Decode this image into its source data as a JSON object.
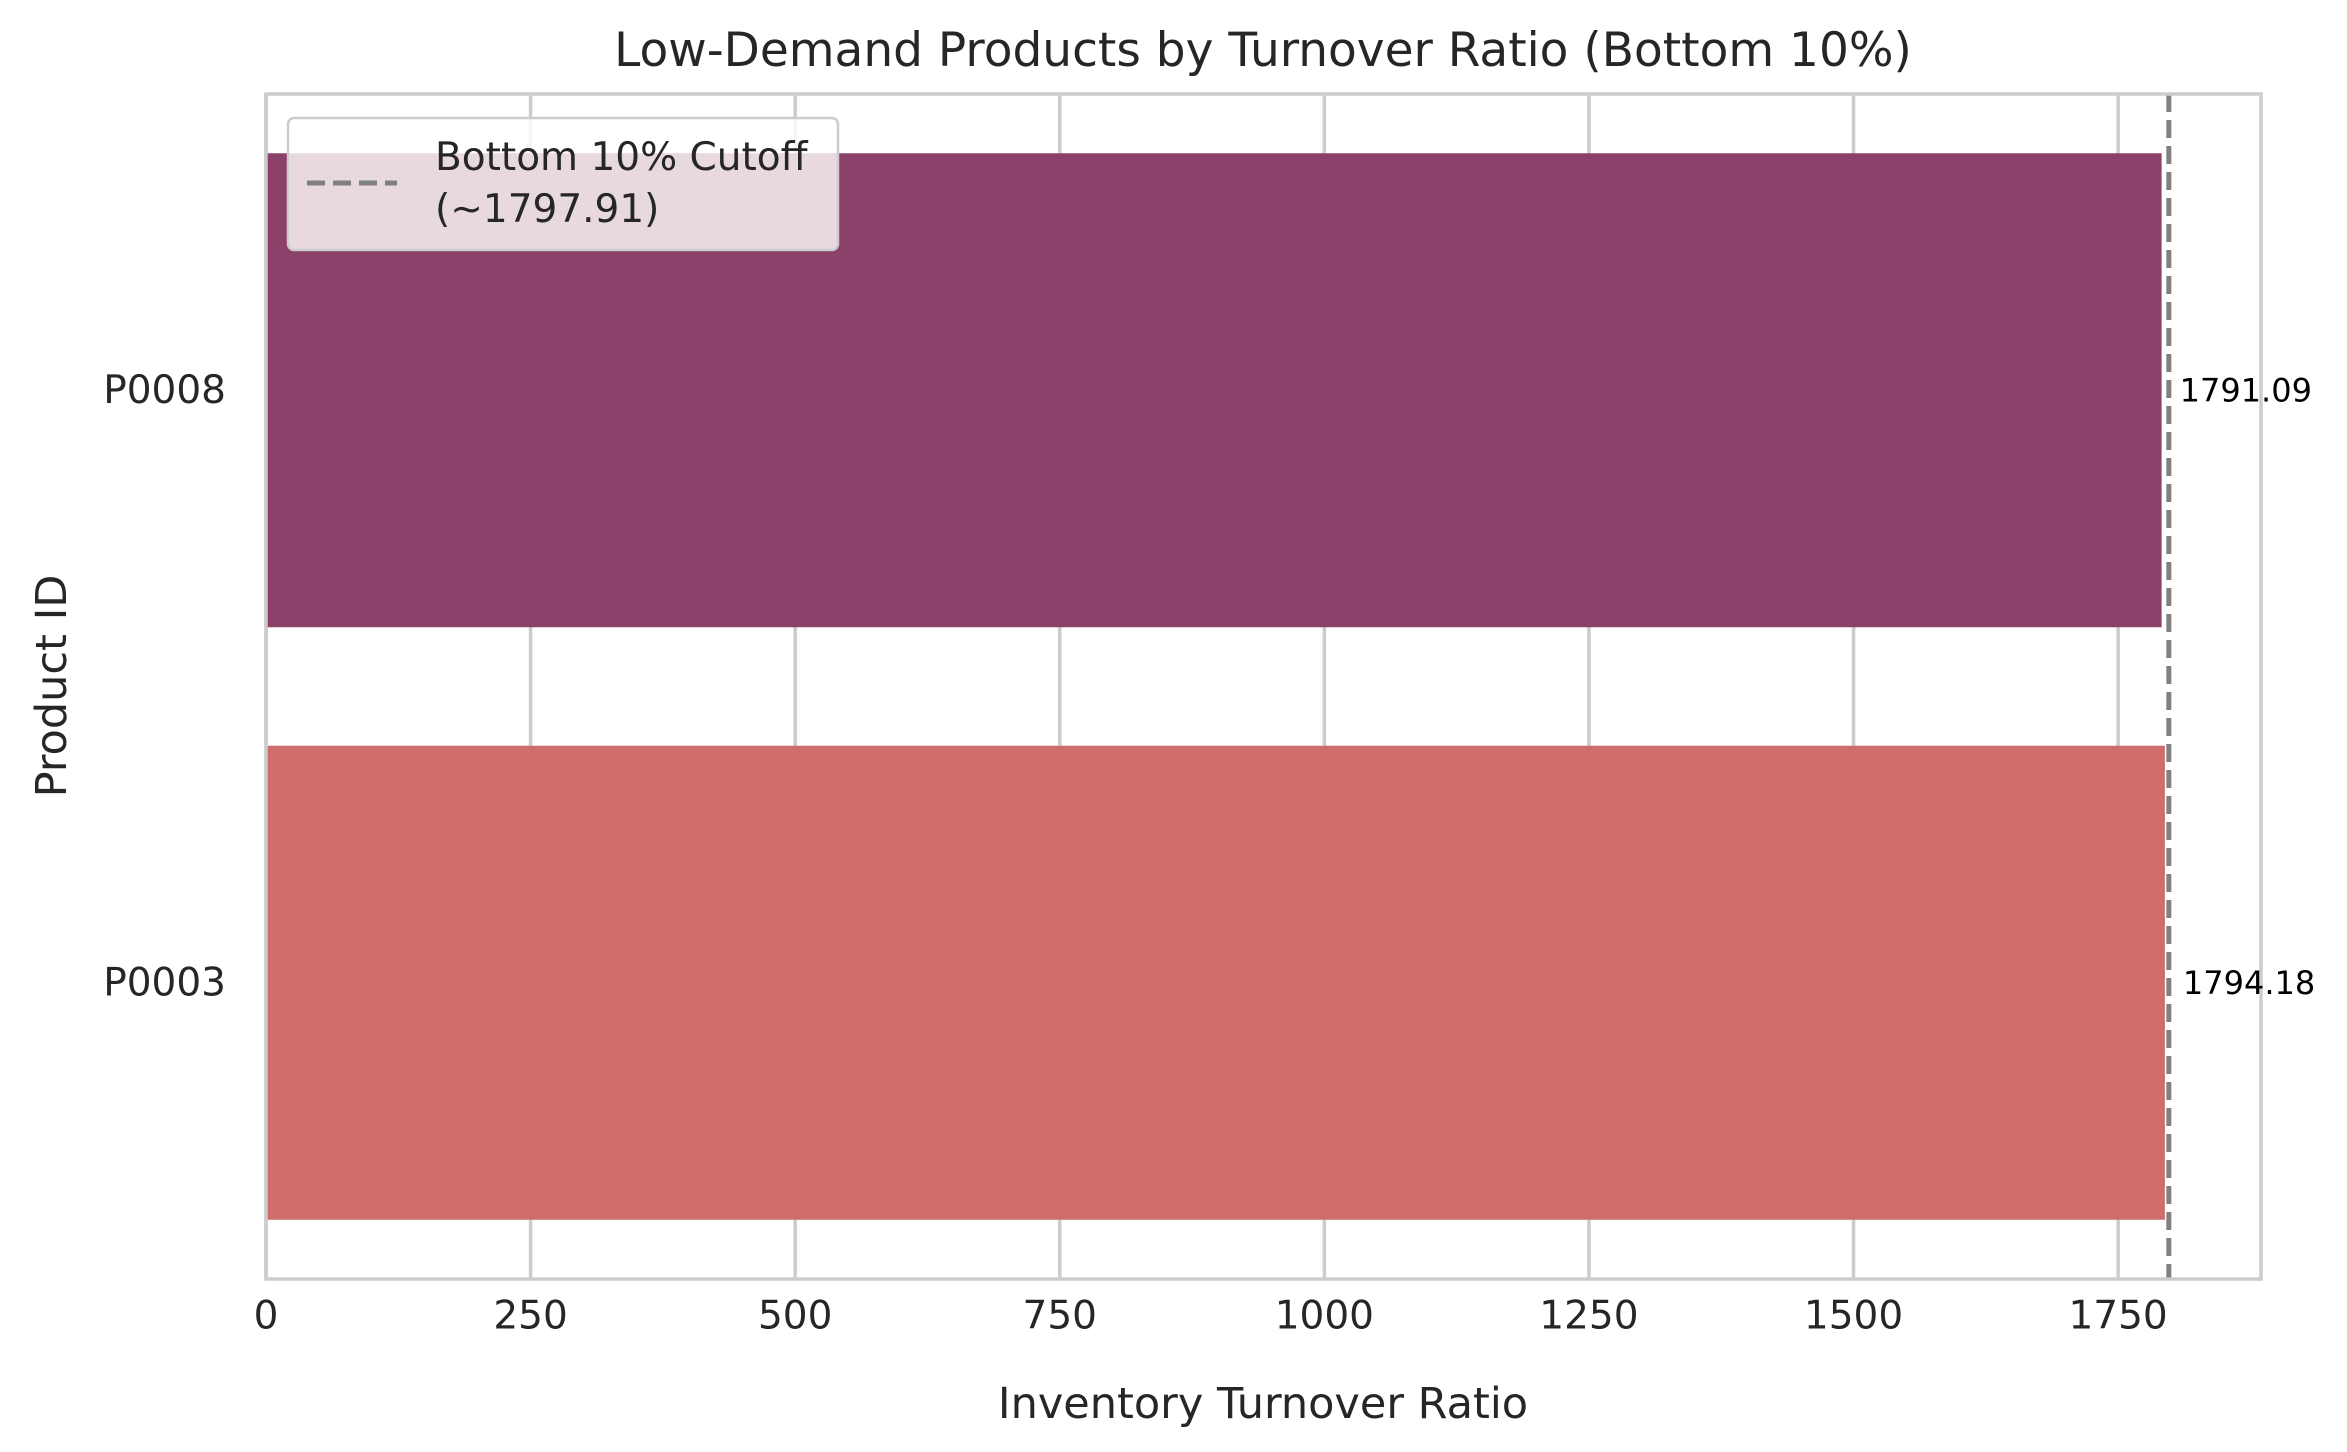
{
  "chart_data": {
    "type": "bar",
    "orientation": "horizontal",
    "title": "Low-Demand Products by Turnover Ratio (Bottom 10%)",
    "xlabel": "Inventory Turnover Ratio",
    "ylabel": "Product ID",
    "categories": [
      "P0008",
      "P0003"
    ],
    "values": [
      1791.09,
      1794.18
    ],
    "value_labels": [
      "1791.09",
      "1794.18"
    ],
    "bar_colors": [
      "#8c416a",
      "#cf6c6c"
    ],
    "xlim": [
      0,
      1885
    ],
    "xticks": [
      0,
      250,
      500,
      750,
      1000,
      1250,
      1500,
      1750
    ],
    "xtick_labels": [
      "0",
      "250",
      "500",
      "750",
      "1000",
      "1250",
      "1500",
      "1750"
    ],
    "grid": "x",
    "cutoff": {
      "value": 1797.91,
      "color": "#808080",
      "style": "dashed",
      "legend_lines": [
        "Bottom 10% Cutoff",
        "(~1797.91)"
      ]
    },
    "legend_position": "top-left"
  }
}
